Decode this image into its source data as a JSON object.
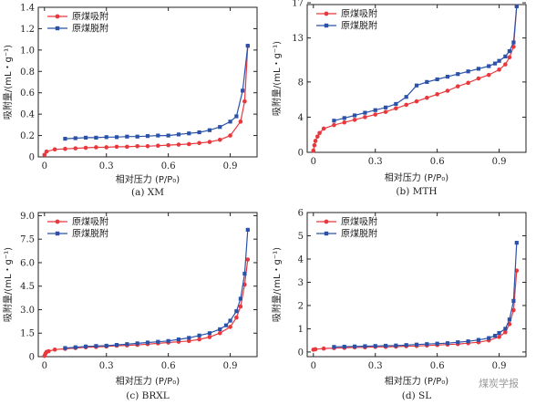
{
  "colors": {
    "adsorption": "#e8383d",
    "desorption": "#2a52a8",
    "axis": "#222222",
    "watermark": "#9a9a9a"
  },
  "watermark": {
    "text": "煤炭学报"
  },
  "chart_data": [
    {
      "type": "line",
      "caption": "(a) XM",
      "xlabel": "相对压力 (P/P₀)",
      "ylabel": "吸附量/(mL・g⁻¹)",
      "xlim": [
        -0.03,
        1.03
      ],
      "ylim": [
        0,
        1.4
      ],
      "xticks": [
        0,
        0.3,
        0.6,
        0.9
      ],
      "xtick_labels": [
        "0",
        "0.3",
        "0.6",
        "0.9"
      ],
      "yticks": [
        0,
        0.2,
        0.4,
        0.6,
        0.8,
        1.0,
        1.2,
        1.4
      ],
      "ytick_labels": [
        "0",
        "0.2",
        "0.4",
        "0.6",
        "0.8",
        "1.0",
        "1.2",
        "1.4"
      ],
      "legend_position": "top-left",
      "series": [
        {
          "name": "原煤吸附",
          "marker": "circle",
          "color": "#e8383d",
          "x": [
            0.0,
            0.01,
            0.05,
            0.1,
            0.15,
            0.2,
            0.25,
            0.3,
            0.35,
            0.4,
            0.45,
            0.5,
            0.55,
            0.6,
            0.65,
            0.7,
            0.75,
            0.8,
            0.85,
            0.9,
            0.95,
            0.97,
            0.985
          ],
          "y": [
            0.02,
            0.05,
            0.07,
            0.075,
            0.08,
            0.085,
            0.09,
            0.09,
            0.095,
            0.095,
            0.1,
            0.1,
            0.105,
            0.11,
            0.115,
            0.12,
            0.13,
            0.14,
            0.16,
            0.2,
            0.33,
            0.52,
            1.04
          ]
        },
        {
          "name": "原煤脱附",
          "marker": "square",
          "color": "#2a52a8",
          "x": [
            0.1,
            0.15,
            0.2,
            0.25,
            0.3,
            0.35,
            0.4,
            0.45,
            0.5,
            0.55,
            0.6,
            0.65,
            0.7,
            0.75,
            0.8,
            0.85,
            0.9,
            0.93,
            0.96,
            0.985
          ],
          "y": [
            0.17,
            0.175,
            0.18,
            0.18,
            0.185,
            0.185,
            0.19,
            0.19,
            0.195,
            0.2,
            0.2,
            0.21,
            0.22,
            0.23,
            0.25,
            0.28,
            0.33,
            0.38,
            0.62,
            1.04
          ]
        }
      ]
    },
    {
      "type": "line",
      "caption": "(b) MTH",
      "xlabel": "相对压力 (P/P₀)",
      "ylabel": "吸附量/(mL・g⁻¹)",
      "xlim": [
        -0.03,
        1.03
      ],
      "ylim": [
        0,
        16.8
      ],
      "xticks": [
        0,
        0.3,
        0.6,
        0.9
      ],
      "xtick_labels": [
        "0",
        "0.3",
        "0.6",
        "0.9"
      ],
      "yticks": [
        0,
        4,
        8,
        13,
        17
      ],
      "ytick_labels": [
        "0",
        "4",
        "8",
        "13",
        "17"
      ],
      "legend_position": "top-left",
      "series": [
        {
          "name": "原煤吸附",
          "marker": "circle",
          "color": "#e8383d",
          "x": [
            0.0,
            0.005,
            0.01,
            0.02,
            0.03,
            0.05,
            0.1,
            0.15,
            0.2,
            0.25,
            0.3,
            0.35,
            0.4,
            0.45,
            0.5,
            0.55,
            0.6,
            0.65,
            0.7,
            0.75,
            0.8,
            0.85,
            0.9,
            0.93,
            0.95,
            0.97,
            0.985
          ],
          "y": [
            0.2,
            0.8,
            1.3,
            1.8,
            2.2,
            2.7,
            3.1,
            3.4,
            3.7,
            4.0,
            4.3,
            4.6,
            5.0,
            5.4,
            5.8,
            6.2,
            6.6,
            7.0,
            7.5,
            7.9,
            8.4,
            8.8,
            9.4,
            10.0,
            10.8,
            12.0,
            16.6
          ]
        },
        {
          "name": "原煤脱附",
          "marker": "square",
          "color": "#2a52a8",
          "x": [
            0.1,
            0.15,
            0.2,
            0.25,
            0.3,
            0.35,
            0.4,
            0.45,
            0.5,
            0.55,
            0.6,
            0.65,
            0.7,
            0.75,
            0.8,
            0.85,
            0.88,
            0.9,
            0.93,
            0.95,
            0.97,
            0.985
          ],
          "y": [
            3.6,
            3.9,
            4.2,
            4.5,
            4.8,
            5.1,
            5.5,
            6.3,
            7.6,
            8.0,
            8.3,
            8.6,
            8.9,
            9.2,
            9.5,
            9.8,
            10.1,
            10.4,
            10.9,
            11.5,
            12.5,
            16.6
          ]
        }
      ]
    },
    {
      "type": "line",
      "caption": "(c) BRXL",
      "xlabel": "相对压力 (P/P₀)",
      "ylabel": "吸附量/(mL・g⁻¹)",
      "xlim": [
        -0.03,
        1.03
      ],
      "ylim": [
        0,
        9.2
      ],
      "xticks": [
        0,
        0.3,
        0.6,
        0.9
      ],
      "xtick_labels": [
        "0",
        "0.3",
        "0.6",
        "0.9"
      ],
      "yticks": [
        0,
        1.5,
        3.0,
        4.5,
        6.0,
        7.5,
        9.0
      ],
      "ytick_labels": [
        "0",
        "1.5",
        "3.0",
        "4.5",
        "6.0",
        "7.5",
        "9.0"
      ],
      "legend_position": "top-left",
      "series": [
        {
          "name": "原煤吸附",
          "marker": "circle",
          "color": "#e8383d",
          "x": [
            0.0,
            0.005,
            0.01,
            0.02,
            0.05,
            0.1,
            0.15,
            0.2,
            0.25,
            0.3,
            0.35,
            0.4,
            0.45,
            0.5,
            0.55,
            0.6,
            0.65,
            0.7,
            0.75,
            0.8,
            0.85,
            0.9,
            0.93,
            0.95,
            0.97,
            0.985
          ],
          "y": [
            0.05,
            0.2,
            0.3,
            0.35,
            0.45,
            0.5,
            0.55,
            0.6,
            0.62,
            0.65,
            0.7,
            0.72,
            0.75,
            0.8,
            0.85,
            0.9,
            0.95,
            1.0,
            1.1,
            1.25,
            1.5,
            1.9,
            2.5,
            3.2,
            4.6,
            6.2
          ]
        },
        {
          "name": "原煤脱附",
          "marker": "square",
          "color": "#2a52a8",
          "x": [
            0.1,
            0.15,
            0.2,
            0.25,
            0.3,
            0.35,
            0.4,
            0.45,
            0.5,
            0.55,
            0.6,
            0.65,
            0.7,
            0.75,
            0.8,
            0.85,
            0.88,
            0.9,
            0.93,
            0.95,
            0.97,
            0.985
          ],
          "y": [
            0.55,
            0.6,
            0.65,
            0.68,
            0.7,
            0.75,
            0.8,
            0.85,
            0.9,
            0.95,
            1.0,
            1.1,
            1.2,
            1.35,
            1.5,
            1.75,
            2.0,
            2.3,
            2.9,
            3.7,
            5.3,
            8.1
          ]
        }
      ]
    },
    {
      "type": "line",
      "caption": "(d) SL",
      "xlabel": "相对压力 (P/P₀)",
      "ylabel": "吸附量/(mL・g⁻¹)",
      "xlim": [
        -0.03,
        1.03
      ],
      "ylim": [
        -0.2,
        6
      ],
      "xticks": [
        0,
        0.3,
        0.6,
        0.9
      ],
      "xtick_labels": [
        "0",
        "0.3",
        "0.6",
        "0.9"
      ],
      "yticks": [
        0,
        1,
        2,
        3,
        4,
        5,
        6
      ],
      "ytick_labels": [
        "0",
        "1",
        "2",
        "3",
        "4",
        "5",
        "6"
      ],
      "legend_position": "top-left",
      "series": [
        {
          "name": "原煤吸附",
          "marker": "circle",
          "color": "#e8383d",
          "x": [
            0.0,
            0.01,
            0.05,
            0.1,
            0.15,
            0.2,
            0.25,
            0.3,
            0.35,
            0.4,
            0.45,
            0.5,
            0.55,
            0.6,
            0.65,
            0.7,
            0.75,
            0.8,
            0.85,
            0.9,
            0.93,
            0.95,
            0.97,
            0.985
          ],
          "y": [
            0.1,
            0.12,
            0.15,
            0.17,
            0.18,
            0.2,
            0.2,
            0.22,
            0.22,
            0.23,
            0.25,
            0.26,
            0.28,
            0.3,
            0.32,
            0.34,
            0.38,
            0.42,
            0.5,
            0.65,
            0.85,
            1.2,
            1.8,
            3.5
          ]
        },
        {
          "name": "原煤脱附",
          "marker": "square",
          "color": "#2a52a8",
          "x": [
            0.1,
            0.15,
            0.2,
            0.25,
            0.3,
            0.35,
            0.4,
            0.45,
            0.5,
            0.55,
            0.6,
            0.65,
            0.7,
            0.75,
            0.8,
            0.85,
            0.88,
            0.9,
            0.93,
            0.95,
            0.97,
            0.985
          ],
          "y": [
            0.22,
            0.23,
            0.24,
            0.25,
            0.26,
            0.27,
            0.28,
            0.3,
            0.32,
            0.34,
            0.36,
            0.38,
            0.42,
            0.46,
            0.52,
            0.6,
            0.7,
            0.82,
            1.0,
            1.4,
            2.2,
            4.7
          ]
        }
      ]
    }
  ]
}
